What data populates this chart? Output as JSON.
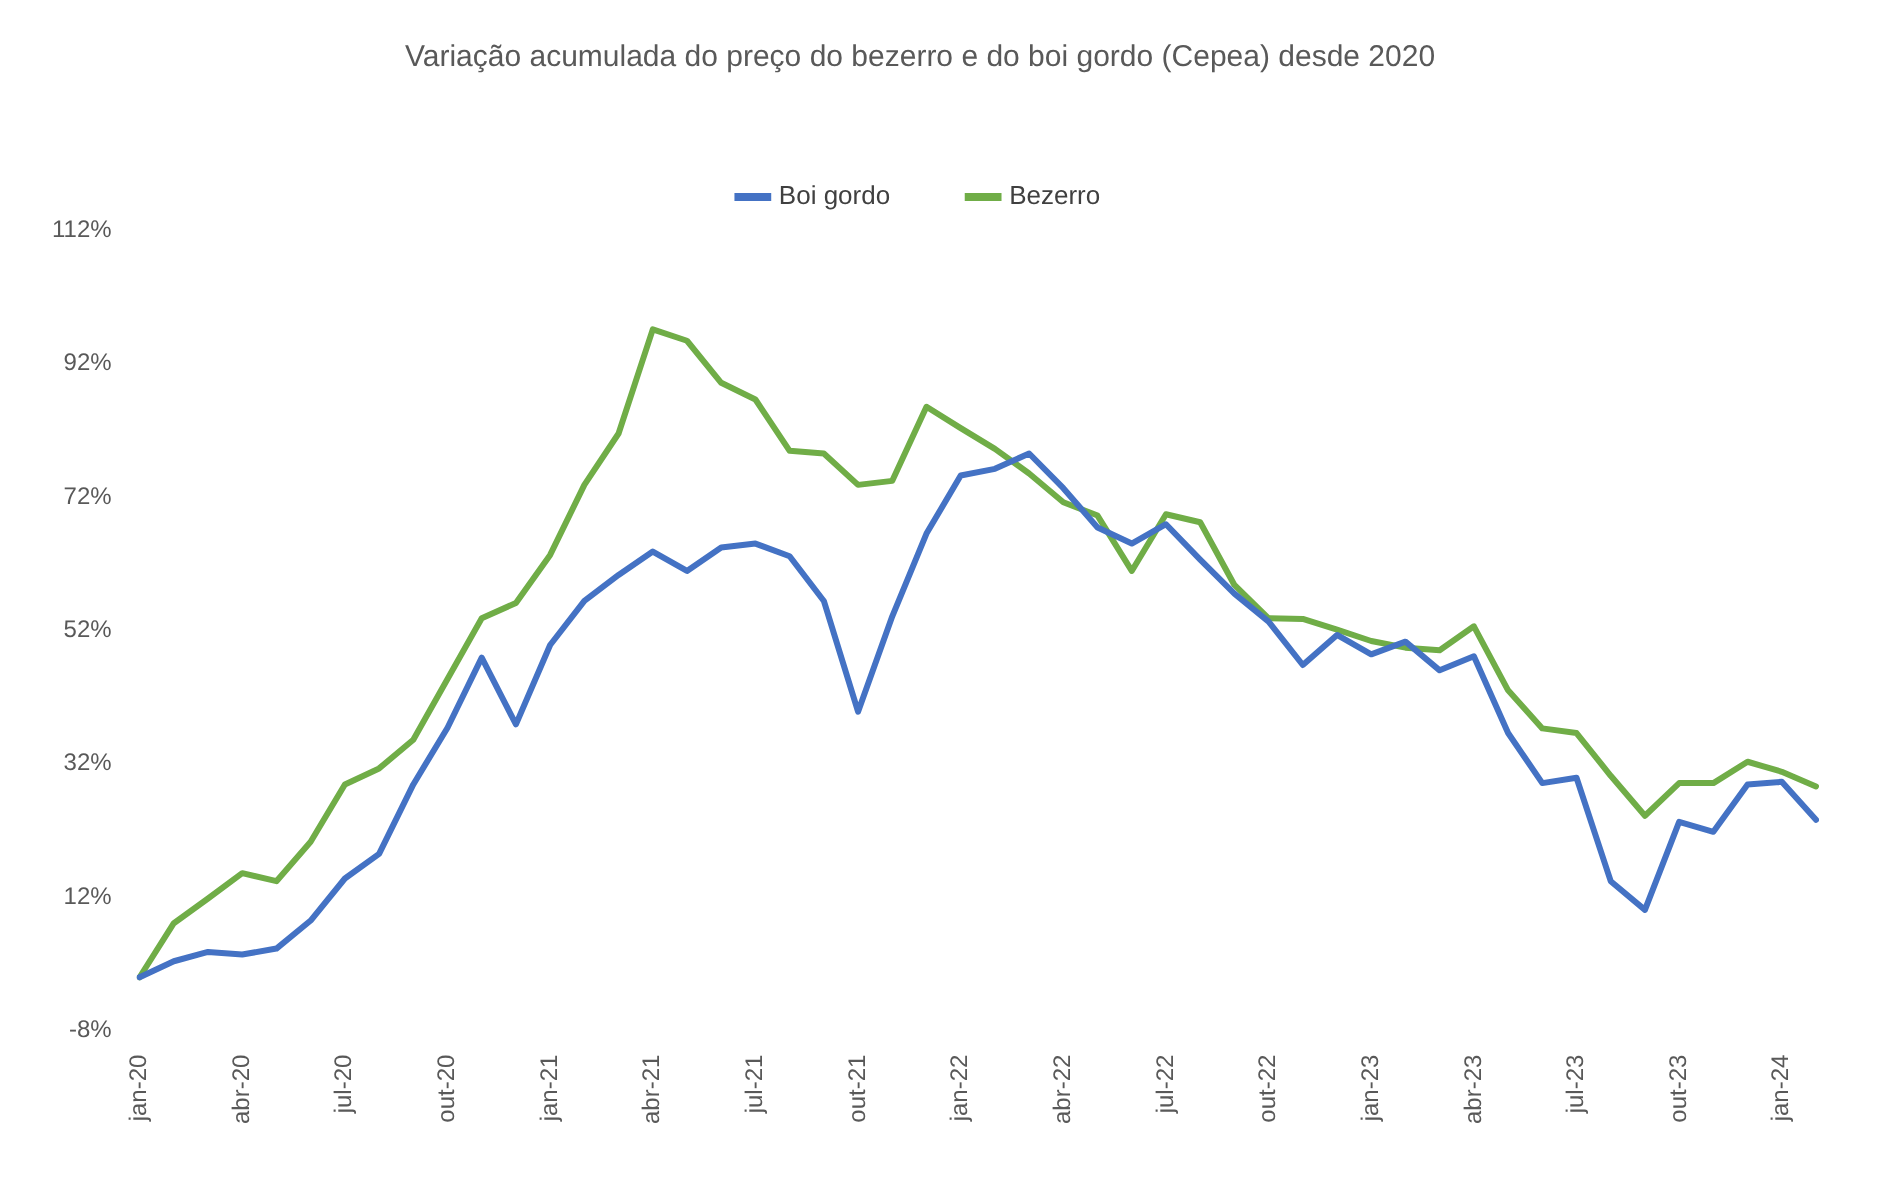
{
  "chart_data": {
    "type": "line",
    "title": "Variação acumulada do preço do bezerro e do boi gordo (Cepea) desde 2020",
    "categories": [
      "jan-20",
      null,
      null,
      "abr-20",
      null,
      null,
      "jul-20",
      null,
      null,
      "out-20",
      null,
      null,
      "jan-21",
      null,
      null,
      "abr-21",
      null,
      null,
      "jul-21",
      null,
      null,
      "out-21",
      null,
      null,
      "jan-22",
      null,
      null,
      "abr-22",
      null,
      null,
      "jul-22",
      null,
      null,
      "out-22",
      null,
      null,
      "jan-23",
      null,
      null,
      "abr-23",
      null,
      null,
      "jul-23",
      null,
      null,
      "out-23",
      null,
      null,
      "jan-24",
      null
    ],
    "series": [
      {
        "name": "Boi gordo",
        "color": "#4472c4",
        "values": [
          0,
          2.4,
          3.8,
          3.4,
          4.3,
          8.5,
          14.8,
          18.5,
          28.9,
          37.4,
          47.9,
          37.9,
          49.8,
          56.4,
          60.3,
          63.8,
          60.9,
          64.4,
          65,
          63.1,
          56.4,
          39.8,
          54.1,
          66.5,
          75.2,
          76.2,
          78.5,
          73.3,
          67.4,
          65,
          67.9,
          62.6,
          57.5,
          53.3,
          46.8,
          51.3,
          48.4,
          50.3,
          46,
          48.1,
          36.6,
          29.1,
          29.9,
          14.4,
          10.1,
          23.3,
          21.8,
          28.9,
          29.3,
          23.6
        ]
      },
      {
        "name": "Bezerro",
        "color": "#70ad47",
        "values": [
          0,
          8.1,
          11.8,
          15.6,
          14.4,
          20.3,
          28.9,
          31.3,
          35.6,
          44.7,
          53.8,
          56.1,
          63.3,
          73.8,
          81.5,
          97.1,
          95.4,
          89.1,
          86.6,
          78.9,
          78.5,
          73.8,
          74.4,
          85.5,
          82.3,
          79.2,
          75.5,
          71.2,
          69.2,
          60.9,
          69.4,
          68.2,
          58.8,
          53.8,
          53.7,
          52.1,
          50.4,
          49.4,
          49,
          52.6,
          43,
          37.3,
          36.6,
          30.2,
          24.2,
          29.1,
          29.1,
          32.3,
          30.8,
          28.6
        ]
      }
    ],
    "ylim": [
      -8,
      112
    ],
    "yticks": [
      {
        "value": -8,
        "label": "-8%"
      },
      {
        "value": 12,
        "label": "12%"
      },
      {
        "value": 32,
        "label": "32%"
      },
      {
        "value": 52,
        "label": "52%"
      },
      {
        "value": 72,
        "label": "72%"
      },
      {
        "value": 92,
        "label": "92%"
      },
      {
        "value": 112,
        "label": "112%"
      }
    ],
    "grid": false,
    "legend": "top",
    "marker": "none",
    "line_style": "solid"
  }
}
